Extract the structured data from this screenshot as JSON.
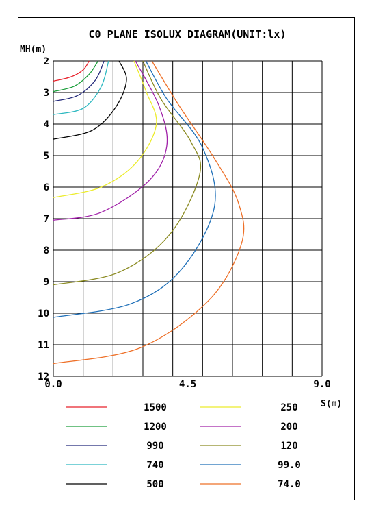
{
  "chart_data": {
    "type": "line",
    "title": "C0 PLANE ISOLUX DIAGRAM(UNIT:lx)",
    "ylabel": "MH(m)",
    "xlabel": "S(m)",
    "xlim": [
      0,
      9
    ],
    "ylim": [
      2,
      12
    ],
    "x_tick_labels": [
      "0.0",
      "4.5",
      "9.0"
    ],
    "y_tick_labels": [
      "2",
      "3",
      "4",
      "5",
      "6",
      "7",
      "8",
      "9",
      "10",
      "11",
      "12"
    ],
    "grid": true,
    "legend_position": "bottom",
    "series": [
      {
        "name": "1500",
        "color": "#e8202a",
        "points": [
          [
            0,
            2.64
          ],
          [
            0.6,
            2.5
          ],
          [
            1.0,
            2.28
          ],
          [
            1.2,
            2.0
          ]
        ]
      },
      {
        "name": "1200",
        "color": "#1a9e3a",
        "points": [
          [
            0,
            2.97
          ],
          [
            0.7,
            2.8
          ],
          [
            1.2,
            2.42
          ],
          [
            1.5,
            2.0
          ]
        ]
      },
      {
        "name": "990",
        "color": "#22287a",
        "points": [
          [
            0,
            3.28
          ],
          [
            0.8,
            3.1
          ],
          [
            1.4,
            2.62
          ],
          [
            1.7,
            2.0
          ]
        ]
      },
      {
        "name": "740",
        "color": "#2cb8c0",
        "points": [
          [
            0,
            3.7
          ],
          [
            1.0,
            3.5
          ],
          [
            1.6,
            2.82
          ],
          [
            1.85,
            2.0
          ]
        ]
      },
      {
        "name": "500",
        "color": "#000000",
        "points": [
          [
            0,
            4.48
          ],
          [
            1.3,
            4.2
          ],
          [
            2.1,
            3.45
          ],
          [
            2.45,
            2.6
          ],
          [
            2.2,
            2.0
          ]
        ]
      },
      {
        "name": "250",
        "color": "#ecec2c",
        "points": [
          [
            0,
            6.33
          ],
          [
            1.6,
            6.0
          ],
          [
            2.8,
            5.2
          ],
          [
            3.45,
            4.0
          ],
          [
            3.1,
            2.95
          ],
          [
            2.7,
            2.0
          ]
        ]
      },
      {
        "name": "200",
        "color": "#a020a8",
        "points": [
          [
            0,
            7.05
          ],
          [
            1.6,
            6.8
          ],
          [
            3.2,
            5.8
          ],
          [
            3.8,
            4.7
          ],
          [
            3.55,
            3.45
          ],
          [
            2.75,
            2.0
          ]
        ]
      },
      {
        "name": "120",
        "color": "#8a8a20",
        "points": [
          [
            0,
            9.1
          ],
          [
            2.2,
            8.7
          ],
          [
            3.9,
            7.5
          ],
          [
            4.9,
            5.6
          ],
          [
            4.6,
            4.55
          ],
          [
            3.6,
            3.2
          ],
          [
            3.0,
            2.0
          ]
        ]
      },
      {
        "name": "99.0",
        "color": "#1e6fb8",
        "points": [
          [
            0,
            10.13
          ],
          [
            2.6,
            9.7
          ],
          [
            4.3,
            8.6
          ],
          [
            5.4,
            6.6
          ],
          [
            5.0,
            4.75
          ],
          [
            3.8,
            3.2
          ],
          [
            3.1,
            2.0
          ]
        ]
      },
      {
        "name": "74.0",
        "color": "#ee7028",
        "points": [
          [
            0,
            11.6
          ],
          [
            2.9,
            11.1
          ],
          [
            5.2,
            9.6
          ],
          [
            6.3,
            7.8
          ],
          [
            6.2,
            6.5
          ],
          [
            5.4,
            5.1
          ],
          [
            4.2,
            3.4
          ],
          [
            3.3,
            2.0
          ]
        ]
      }
    ]
  }
}
